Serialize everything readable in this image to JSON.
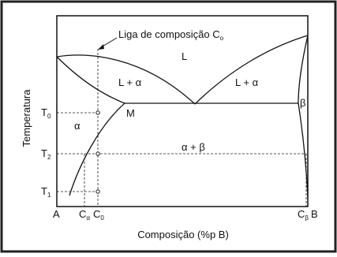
{
  "annotation": {
    "text": "Liga de composição C",
    "sub": "o"
  },
  "phases": {
    "liquid": "L",
    "left_two_phase": "L + α",
    "right_two_phase": "L + α",
    "beta": "β",
    "alpha": "α",
    "eutectic_solid": "α + β",
    "eutectic_point": "M"
  },
  "temperatures": [
    {
      "text": "T",
      "sub": "0"
    },
    {
      "text": "T",
      "sub": "2"
    },
    {
      "text": "T",
      "sub": "1"
    }
  ],
  "x_labels": {
    "a": "A",
    "c_alpha": {
      "text": "C",
      "sub": "α"
    },
    "c_0": {
      "text": "C",
      "sub": "0"
    },
    "c_beta": {
      "text": "C",
      "sub": "β"
    },
    "b": "B"
  },
  "x_axis_title": "Composição (%p B)",
  "y_axis_title": "Temperatura"
}
